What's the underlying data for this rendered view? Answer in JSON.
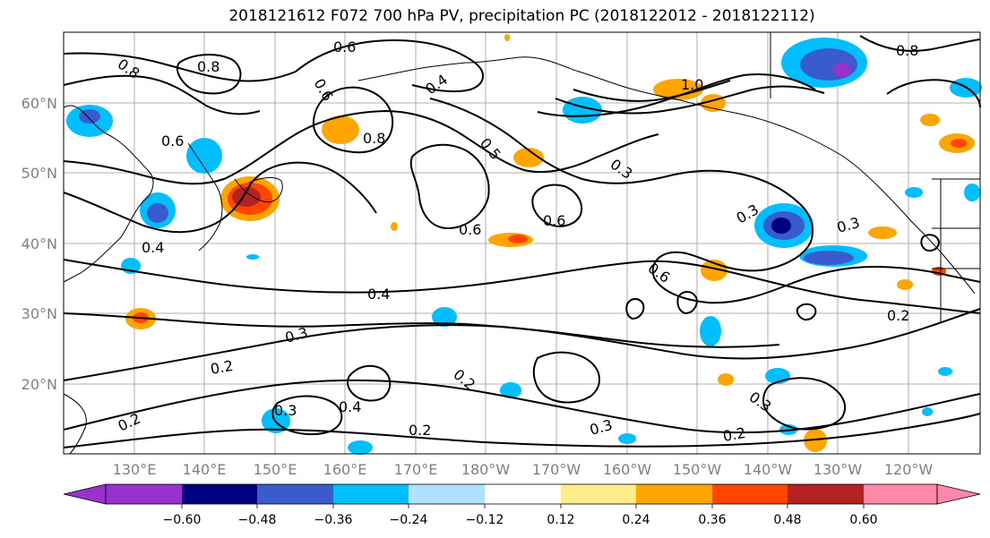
{
  "title": "2018121612 F072 700 hPa PV, precipitation PC (2018122012 - 2018122112)",
  "lat_labels": [
    "60°N",
    "50°N",
    "40°N",
    "30°N",
    "20°N"
  ],
  "lon_labels": [
    "130°E",
    "140°E",
    "150°E",
    "160°E",
    "170°E",
    "180°W",
    "170°W",
    "160°W",
    "150°W",
    "140°W",
    "130°W",
    "120°W"
  ],
  "contour_labels": [
    "0.8",
    "0.8",
    "0.8",
    "0.6",
    "0.6",
    "0.6",
    "0.4",
    "0.4",
    "0.4",
    "0.4",
    "0.3",
    "0.3",
    "0.3",
    "0.3",
    "0.3",
    "0.3",
    "0.3",
    "0.2",
    "0.2",
    "0.2",
    "0.2",
    "0.2",
    "0.2",
    "1.0",
    "0.5",
    "0.6",
    "0.6",
    "0.6",
    "0.8"
  ],
  "colorbar": {
    "ticks": [
      "−0.60",
      "−0.48",
      "−0.36",
      "−0.24",
      "−0.12",
      "0.12",
      "0.24",
      "0.36",
      "0.48",
      "0.60"
    ],
    "colors": [
      "#9932cc",
      "#000080",
      "#3a5bcd",
      "#00bfff",
      "#b0e2ff",
      "#ffffff",
      "#ffec8b",
      "#ffa500",
      "#ff4500",
      "#b22222",
      "#ff88aa"
    ]
  },
  "palette": {
    "neg_light": "#00bfff",
    "neg_mid": "#3a5bcd",
    "neg_dark": "#000080",
    "pos_light": "#ffa500",
    "pos_mid": "#ff4500",
    "pos_dark": "#b22222",
    "pos_pale": "#ffec8b",
    "neg_pale": "#b0e2ff"
  }
}
